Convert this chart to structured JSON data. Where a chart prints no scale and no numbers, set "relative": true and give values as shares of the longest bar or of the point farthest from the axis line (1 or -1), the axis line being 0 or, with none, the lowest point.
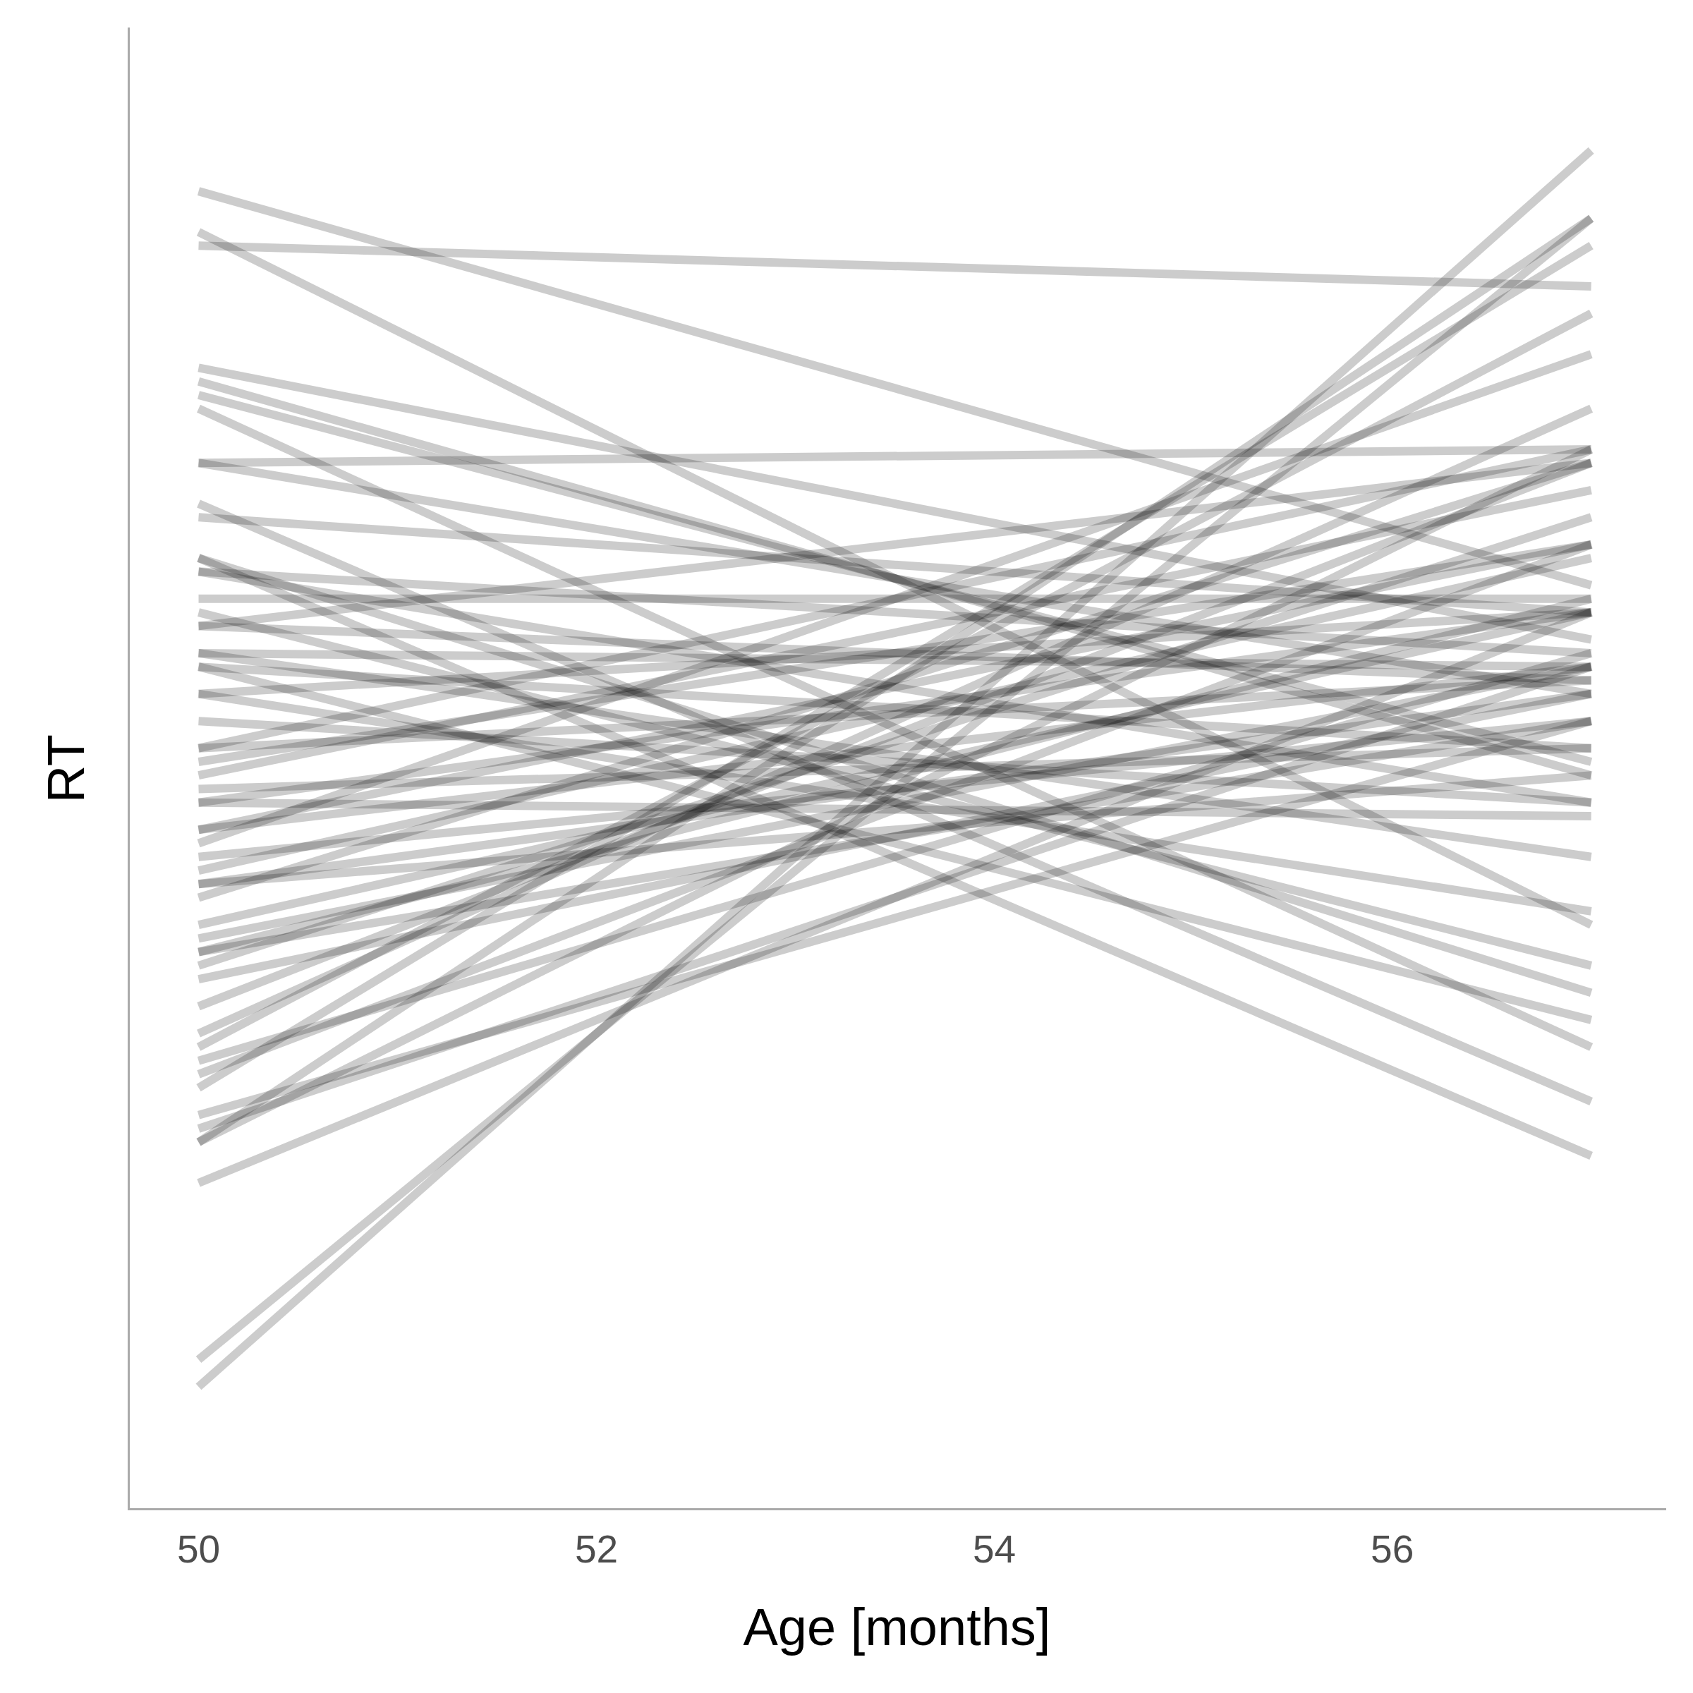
{
  "chart_data": {
    "type": "line",
    "relative": true,
    "xlabel": "Age [months]",
    "ylabel": "RT",
    "x": [
      50,
      57
    ],
    "xlim": [
      49.65,
      57.37
    ],
    "xticks": [
      50,
      52,
      54,
      56
    ],
    "tick_labels": "x",
    "grid": false,
    "legend": false,
    "marker": "none",
    "line_style": "solid",
    "series": [
      {
        "color": "#cccccc",
        "values": [
          0.97,
          0.68
        ]
      },
      {
        "color": "#cccccc",
        "values": [
          0.93,
          0.9
        ]
      },
      {
        "color": "#cccccc",
        "values": [
          0.94,
          0.43
        ]
      },
      {
        "color": "#cccccc",
        "values": [
          0.84,
          0.64
        ]
      },
      {
        "color": "#cccccc",
        "values": [
          0.83,
          0.54
        ]
      },
      {
        "color": "#cccccc",
        "values": [
          0.82,
          0.55
        ]
      },
      {
        "color": "#cccccc",
        "values": [
          0.81,
          0.34
        ]
      },
      {
        "color": "#cccccc",
        "values": [
          0.77,
          0.78
        ]
      },
      {
        "color": "#cccccc",
        "values": [
          0.77,
          0.6
        ]
      },
      {
        "color": "#cccccc",
        "values": [
          0.74,
          0.3
        ]
      },
      {
        "color": "#cccccc",
        "values": [
          0.73,
          0.66
        ]
      },
      {
        "color": "#cccccc",
        "values": [
          0.7,
          0.26
        ]
      },
      {
        "color": "#cccccc",
        "values": [
          0.7,
          0.38
        ]
      },
      {
        "color": "#cccccc",
        "values": [
          0.69,
          0.63
        ]
      },
      {
        "color": "#cccccc",
        "values": [
          0.69,
          0.52
        ]
      },
      {
        "color": "#cccccc",
        "values": [
          0.67,
          0.67
        ]
      },
      {
        "color": "#cccccc",
        "values": [
          0.66,
          0.4
        ]
      },
      {
        "color": "#cccccc",
        "values": [
          0.65,
          0.61
        ]
      },
      {
        "color": "#cccccc",
        "values": [
          0.63,
          0.62
        ]
      },
      {
        "color": "#cccccc",
        "values": [
          0.63,
          0.48
        ]
      },
      {
        "color": "#cccccc",
        "values": [
          0.62,
          0.36
        ]
      },
      {
        "color": "#cccccc",
        "values": [
          0.62,
          0.56
        ]
      },
      {
        "color": "#cccccc",
        "values": [
          0.6,
          0.66
        ]
      },
      {
        "color": "#cccccc",
        "values": [
          0.6,
          0.44
        ]
      },
      {
        "color": "#cccccc",
        "values": [
          0.58,
          0.52
        ]
      },
      {
        "color": "#cccccc",
        "values": [
          0.56,
          0.61
        ]
      },
      {
        "color": "#cccccc",
        "values": [
          0.55,
          0.71
        ]
      },
      {
        "color": "#cccccc",
        "values": [
          0.53,
          0.56
        ]
      },
      {
        "color": "#cccccc",
        "values": [
          0.52,
          0.66
        ]
      },
      {
        "color": "#cccccc",
        "values": [
          0.52,
          0.51
        ]
      },
      {
        "color": "#cccccc",
        "values": [
          0.5,
          0.62
        ]
      },
      {
        "color": "#cccccc",
        "values": [
          0.49,
          0.85
        ]
      },
      {
        "color": "#cccccc",
        "values": [
          0.48,
          0.58
        ]
      },
      {
        "color": "#cccccc",
        "values": [
          0.47,
          0.7
        ]
      },
      {
        "color": "#cccccc",
        "values": [
          0.46,
          0.6
        ]
      },
      {
        "color": "#cccccc",
        "values": [
          0.45,
          0.77
        ]
      },
      {
        "color": "#cccccc",
        "values": [
          0.43,
          0.66
        ]
      },
      {
        "color": "#cccccc",
        "values": [
          0.42,
          0.62
        ]
      },
      {
        "color": "#cccccc",
        "values": [
          0.41,
          0.67
        ]
      },
      {
        "color": "#cccccc",
        "values": [
          0.4,
          0.73
        ]
      },
      {
        "color": "#cccccc",
        "values": [
          0.39,
          0.6
        ]
      },
      {
        "color": "#cccccc",
        "values": [
          0.37,
          0.77
        ]
      },
      {
        "color": "#cccccc",
        "values": [
          0.35,
          0.81
        ]
      },
      {
        "color": "#cccccc",
        "values": [
          0.34,
          0.88
        ]
      },
      {
        "color": "#cccccc",
        "values": [
          0.32,
          0.71
        ]
      },
      {
        "color": "#cccccc",
        "values": [
          0.31,
          0.93
        ]
      },
      {
        "color": "#cccccc",
        "values": [
          0.29,
          0.58
        ]
      },
      {
        "color": "#cccccc",
        "values": [
          0.27,
          0.78
        ]
      },
      {
        "color": "#cccccc",
        "values": [
          0.27,
          0.95
        ]
      },
      {
        "color": "#cccccc",
        "values": [
          0.24,
          0.66
        ]
      },
      {
        "color": "#cccccc",
        "values": [
          0.11,
          0.95
        ]
      },
      {
        "color": "#cccccc",
        "values": [
          0.09,
          1.0
        ]
      },
      {
        "color": "#cccccc",
        "values": [
          0.56,
          0.78
        ]
      },
      {
        "color": "#cccccc",
        "values": [
          0.54,
          0.75
        ]
      },
      {
        "color": "#cccccc",
        "values": [
          0.5,
          0.71
        ]
      },
      {
        "color": "#cccccc",
        "values": [
          0.46,
          0.54
        ]
      },
      {
        "color": "#cccccc",
        "values": [
          0.41,
          0.58
        ]
      },
      {
        "color": "#cccccc",
        "values": [
          0.65,
          0.77
        ]
      },
      {
        "color": "#cccccc",
        "values": [
          0.28,
          0.62
        ]
      },
      {
        "color": "#cccccc",
        "values": [
          0.33,
          0.63
        ]
      }
    ]
  }
}
